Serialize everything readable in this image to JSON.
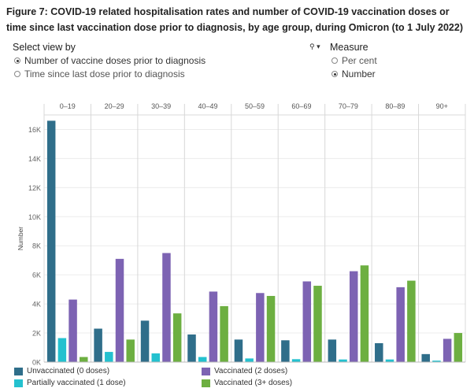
{
  "title": "Figure 7: COVID-19 related hospitalisation rates and number of COVID-19 vaccination doses or time since last vaccination dose prior to diagnosis, by age group, during Omicron (to 1 July 2022)",
  "view": {
    "label": "Select view by",
    "options": [
      {
        "label": "Number of vaccine doses prior to diagnosis",
        "selected": true
      },
      {
        "label": "Time since last dose prior to diagnosis",
        "selected": false
      }
    ]
  },
  "measure": {
    "label": "Measure",
    "options": [
      {
        "label": "Per cent",
        "selected": false
      },
      {
        "label": "Number",
        "selected": true
      }
    ]
  },
  "icons": {
    "filter": "filter-dropdown-icon"
  },
  "chart_data": {
    "type": "bar",
    "categories": [
      "0–19",
      "20–29",
      "30–39",
      "40–49",
      "50–59",
      "60–69",
      "70–79",
      "80–89",
      "90+"
    ],
    "series": [
      {
        "name": "Unvaccinated (0 doses)",
        "color": "#2f6e8a",
        "values": [
          16600,
          2300,
          2850,
          1900,
          1550,
          1500,
          1550,
          1300,
          550
        ]
      },
      {
        "name": "Partially vaccinated (1 dose)",
        "color": "#24c1cf",
        "values": [
          1650,
          700,
          600,
          350,
          250,
          200,
          180,
          180,
          100
        ]
      },
      {
        "name": "Vaccinated (2 doses)",
        "color": "#7d63b3",
        "values": [
          4300,
          7100,
          7500,
          4850,
          4750,
          5550,
          6250,
          5150,
          1600
        ]
      },
      {
        "name": "Vaccinated (3+ doses)",
        "color": "#6daf41",
        "values": [
          350,
          1550,
          3350,
          3850,
          4550,
          5250,
          6650,
          5600,
          2000
        ]
      }
    ],
    "ylabel": "Number",
    "ylim": [
      0,
      17000
    ],
    "yticks": [
      0,
      2000,
      4000,
      6000,
      8000,
      10000,
      12000,
      14000,
      16000
    ],
    "ytick_labels": [
      "0K",
      "2K",
      "4K",
      "6K",
      "8K",
      "10K",
      "12K",
      "14K",
      "16K"
    ],
    "grid": true,
    "legend_position": "bottom"
  }
}
